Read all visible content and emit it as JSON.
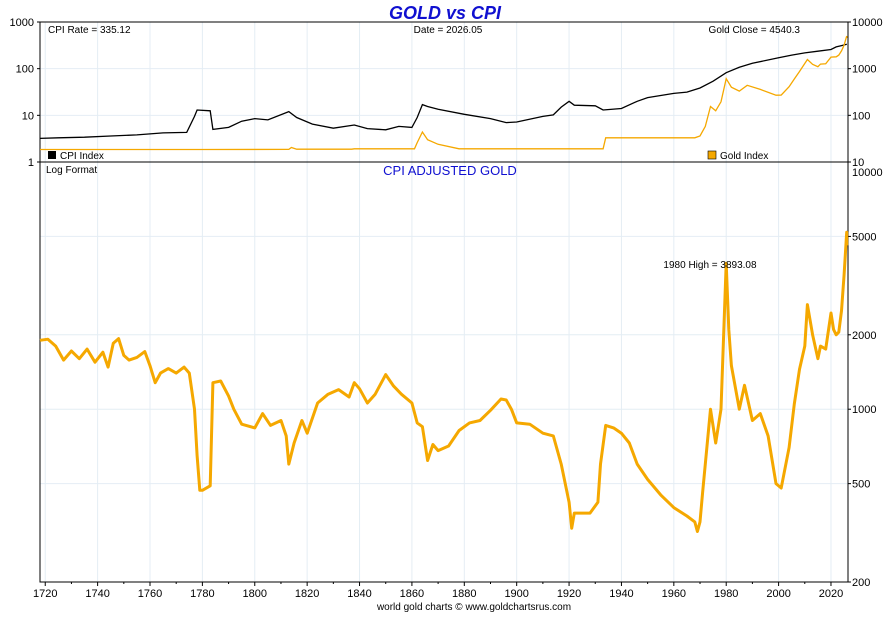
{
  "title": "GOLD vs CPI",
  "footer": "world gold charts © www.goldchartsrus.com",
  "colors": {
    "title": "#1010d0",
    "gold": "#f5a800",
    "cpi": "#000000",
    "grid": "#e4edf4",
    "frame": "#000000"
  },
  "chart_data": [
    {
      "type": "line",
      "panel": "top",
      "scale": "log",
      "readouts": {
        "cpi_rate": "CPI Rate = 335.12",
        "date": "Date = 2026.05",
        "gold_close": "Gold Close = 4540.3"
      },
      "legend": [
        {
          "name": "CPI Index",
          "color": "#000000",
          "placement": "bottom-left"
        },
        {
          "name": "Gold Index",
          "color": "#f5a800",
          "placement": "bottom-right"
        }
      ],
      "y_left": {
        "ticks": [
          "1",
          "10",
          "100",
          "1000"
        ],
        "values": [
          1,
          10,
          100,
          1000
        ],
        "range": [
          1,
          1000
        ]
      },
      "y_right": {
        "ticks": [
          "10",
          "100",
          "1000",
          "10000"
        ],
        "values": [
          10,
          100,
          1000,
          10000
        ],
        "range": [
          10,
          10000
        ]
      },
      "xlim": [
        1718,
        2026.5
      ],
      "grid": true,
      "series": [
        {
          "name": "CPI Index",
          "axis": "left",
          "points": [
            [
              1718,
              3.2
            ],
            [
              1725,
              3.3
            ],
            [
              1735,
              3.4
            ],
            [
              1745,
              3.6
            ],
            [
              1755,
              3.8
            ],
            [
              1765,
              4.2
            ],
            [
              1774,
              4.3
            ],
            [
              1777,
              9.5
            ],
            [
              1778,
              13
            ],
            [
              1783,
              12.5
            ],
            [
              1784,
              5
            ],
            [
              1790,
              5.5
            ],
            [
              1795,
              7.5
            ],
            [
              1800,
              8.5
            ],
            [
              1805,
              8
            ],
            [
              1813,
              12
            ],
            [
              1816,
              9
            ],
            [
              1822,
              6.5
            ],
            [
              1830,
              5.3
            ],
            [
              1838,
              6.2
            ],
            [
              1843,
              5.2
            ],
            [
              1850,
              4.9
            ],
            [
              1855,
              5.8
            ],
            [
              1860,
              5.5
            ],
            [
              1862,
              9
            ],
            [
              1864,
              17
            ],
            [
              1866,
              15.5
            ],
            [
              1870,
              13.5
            ],
            [
              1880,
              10.5
            ],
            [
              1890,
              8.5
            ],
            [
              1896,
              7
            ],
            [
              1900,
              7.2
            ],
            [
              1910,
              9.5
            ],
            [
              1914,
              10.2
            ],
            [
              1917,
              15
            ],
            [
              1920,
              20
            ],
            [
              1922,
              16.5
            ],
            [
              1930,
              16
            ],
            [
              1933,
              13
            ],
            [
              1940,
              14
            ],
            [
              1946,
              20
            ],
            [
              1950,
              24
            ],
            [
              1960,
              29.5
            ],
            [
              1965,
              31.5
            ],
            [
              1970,
              38.5
            ],
            [
              1975,
              54
            ],
            [
              1980,
              82
            ],
            [
              1985,
              107
            ],
            [
              1990,
              130
            ],
            [
              2000,
              172
            ],
            [
              2005,
              195
            ],
            [
              2010,
              218
            ],
            [
              2015,
              237
            ],
            [
              2020,
              258
            ],
            [
              2022,
              292
            ],
            [
              2024,
              312
            ],
            [
              2026.05,
              335.12
            ]
          ]
        },
        {
          "name": "Gold Index",
          "axis": "right",
          "points": [
            [
              1718,
              18.5
            ],
            [
              1760,
              18.5
            ],
            [
              1780,
              18.5
            ],
            [
              1813,
              18.6
            ],
            [
              1814,
              20.5
            ],
            [
              1816,
              18.8
            ],
            [
              1837,
              18.8
            ],
            [
              1838,
              19.2
            ],
            [
              1861,
              19.2
            ],
            [
              1862,
              26
            ],
            [
              1864,
              44
            ],
            [
              1866,
              30
            ],
            [
              1870,
              24
            ],
            [
              1878,
              19.2
            ],
            [
              1900,
              19.2
            ],
            [
              1933,
              19.2
            ],
            [
              1934,
              33
            ],
            [
              1968,
              33
            ],
            [
              1970,
              36
            ],
            [
              1972,
              58
            ],
            [
              1974,
              155
            ],
            [
              1976,
              125
            ],
            [
              1978,
              195
            ],
            [
              1980,
              610
            ],
            [
              1982,
              400
            ],
            [
              1985,
              330
            ],
            [
              1988,
              440
            ],
            [
              1993,
              360
            ],
            [
              1999,
              270
            ],
            [
              2001,
              272
            ],
            [
              2004,
              410
            ],
            [
              2006,
              600
            ],
            [
              2008,
              870
            ],
            [
              2011,
              1570
            ],
            [
              2013,
              1240
            ],
            [
              2015,
              1100
            ],
            [
              2016,
              1250
            ],
            [
              2018,
              1270
            ],
            [
              2020,
              1770
            ],
            [
              2022,
              1800
            ],
            [
              2023,
              1950
            ],
            [
              2024,
              2400
            ],
            [
              2025,
              3200
            ],
            [
              2026,
              5000
            ],
            [
              2026.05,
              4540.3
            ]
          ]
        }
      ]
    },
    {
      "type": "line",
      "panel": "bottom",
      "title": "CPI ADJUSTED GOLD",
      "note": "Log Format",
      "scale": "log",
      "annotation": {
        "text": "1980 High = 3893.08",
        "x": 1980,
        "y": 3893.08
      },
      "y_right": {
        "ticks": [
          "200",
          "500",
          "1000",
          "2000",
          "5000",
          "10000"
        ],
        "values": [
          200,
          500,
          1000,
          2000,
          5000,
          10000
        ],
        "range": [
          200,
          10000
        ]
      },
      "x_ticks": [
        "1720",
        "1740",
        "1760",
        "1780",
        "1800",
        "1820",
        "1840",
        "1860",
        "1880",
        "1900",
        "1920",
        "1940",
        "1960",
        "1980",
        "2000",
        "2020"
      ],
      "x_tick_values": [
        1720,
        1740,
        1760,
        1780,
        1800,
        1820,
        1840,
        1860,
        1880,
        1900,
        1920,
        1940,
        1960,
        1980,
        2000,
        2020
      ],
      "xlim": [
        1718,
        2026.5
      ],
      "grid": true,
      "series": [
        {
          "name": "CPI Adjusted Gold",
          "points": [
            [
              1718,
              1900
            ],
            [
              1721,
              1920
            ],
            [
              1724,
              1800
            ],
            [
              1727,
              1580
            ],
            [
              1730,
              1720
            ],
            [
              1733,
              1600
            ],
            [
              1736,
              1750
            ],
            [
              1739,
              1550
            ],
            [
              1742,
              1700
            ],
            [
              1744,
              1480
            ],
            [
              1746,
              1850
            ],
            [
              1748,
              1930
            ],
            [
              1750,
              1650
            ],
            [
              1752,
              1580
            ],
            [
              1755,
              1620
            ],
            [
              1758,
              1710
            ],
            [
              1760,
              1500
            ],
            [
              1762,
              1280
            ],
            [
              1764,
              1400
            ],
            [
              1767,
              1460
            ],
            [
              1770,
              1400
            ],
            [
              1773,
              1480
            ],
            [
              1775,
              1400
            ],
            [
              1777,
              1000
            ],
            [
              1778,
              650
            ],
            [
              1779,
              470
            ],
            [
              1780,
              470
            ],
            [
              1783,
              490
            ],
            [
              1784,
              1280
            ],
            [
              1787,
              1300
            ],
            [
              1790,
              1130
            ],
            [
              1792,
              1000
            ],
            [
              1795,
              870
            ],
            [
              1800,
              840
            ],
            [
              1803,
              960
            ],
            [
              1806,
              860
            ],
            [
              1810,
              900
            ],
            [
              1812,
              780
            ],
            [
              1813,
              600
            ],
            [
              1815,
              730
            ],
            [
              1818,
              900
            ],
            [
              1820,
              800
            ],
            [
              1824,
              1060
            ],
            [
              1828,
              1150
            ],
            [
              1832,
              1200
            ],
            [
              1836,
              1120
            ],
            [
              1838,
              1280
            ],
            [
              1840,
              1210
            ],
            [
              1843,
              1060
            ],
            [
              1846,
              1150
            ],
            [
              1850,
              1380
            ],
            [
              1853,
              1240
            ],
            [
              1856,
              1150
            ],
            [
              1860,
              1060
            ],
            [
              1862,
              880
            ],
            [
              1864,
              850
            ],
            [
              1866,
              620
            ],
            [
              1868,
              720
            ],
            [
              1870,
              680
            ],
            [
              1874,
              710
            ],
            [
              1878,
              820
            ],
            [
              1882,
              880
            ],
            [
              1886,
              900
            ],
            [
              1890,
              990
            ],
            [
              1894,
              1100
            ],
            [
              1896,
              1090
            ],
            [
              1898,
              1000
            ],
            [
              1900,
              880
            ],
            [
              1905,
              870
            ],
            [
              1910,
              800
            ],
            [
              1914,
              780
            ],
            [
              1917,
              600
            ],
            [
              1920,
              420
            ],
            [
              1921,
              330
            ],
            [
              1922,
              380
            ],
            [
              1928,
              380
            ],
            [
              1931,
              420
            ],
            [
              1932,
              600
            ],
            [
              1934,
              860
            ],
            [
              1937,
              840
            ],
            [
              1940,
              800
            ],
            [
              1943,
              730
            ],
            [
              1946,
              600
            ],
            [
              1950,
              520
            ],
            [
              1955,
              450
            ],
            [
              1960,
              400
            ],
            [
              1965,
              370
            ],
            [
              1968,
              350
            ],
            [
              1969,
              320
            ],
            [
              1970,
              350
            ],
            [
              1971,
              460
            ],
            [
              1972,
              600
            ],
            [
              1974,
              1000
            ],
            [
              1976,
              730
            ],
            [
              1978,
              1000
            ],
            [
              1980,
              3893.08
            ],
            [
              1981,
              2100
            ],
            [
              1982,
              1500
            ],
            [
              1985,
              1000
            ],
            [
              1987,
              1250
            ],
            [
              1990,
              900
            ],
            [
              1993,
              960
            ],
            [
              1996,
              780
            ],
            [
              1999,
              500
            ],
            [
              2001,
              480
            ],
            [
              2004,
              700
            ],
            [
              2006,
              1050
            ],
            [
              2008,
              1450
            ],
            [
              2010,
              1800
            ],
            [
              2011,
              2650
            ],
            [
              2013,
              2000
            ],
            [
              2015,
              1600
            ],
            [
              2016,
              1800
            ],
            [
              2018,
              1750
            ],
            [
              2020,
              2450
            ],
            [
              2021,
              2100
            ],
            [
              2022,
              2000
            ],
            [
              2023,
              2050
            ],
            [
              2024,
              2500
            ],
            [
              2025,
              3500
            ],
            [
              2026,
              5200
            ],
            [
              2026.05,
              4600
            ]
          ]
        }
      ]
    }
  ]
}
